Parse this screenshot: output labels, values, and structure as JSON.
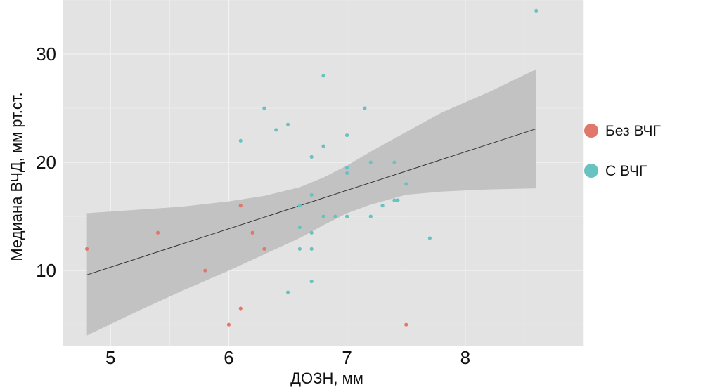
{
  "chart_data": {
    "type": "scatter",
    "xlabel": "ДОЗН, мм",
    "ylabel": "Медиана ВЧД, мм рт.ст.",
    "xlim": [
      4.6,
      9.0
    ],
    "ylim": [
      3.0,
      35.0
    ],
    "x_ticks": [
      5,
      6,
      7,
      8
    ],
    "y_ticks": [
      10,
      20,
      30
    ],
    "grid": true,
    "legend_position": "right",
    "colors": {
      "panel": "#e3e3e3",
      "grid": "#f2f2f2",
      "ribbon": "#c2c2c2",
      "line": "#333333",
      "series_1": "#e0776b",
      "series_2": "#69c2c2"
    },
    "series": [
      {
        "name": "Без ВЧГ",
        "color": "#e0776b",
        "points": [
          {
            "x": 4.8,
            "y": 12
          },
          {
            "x": 5.4,
            "y": 13.5
          },
          {
            "x": 5.8,
            "y": 10
          },
          {
            "x": 6.0,
            "y": 5
          },
          {
            "x": 6.1,
            "y": 16
          },
          {
            "x": 6.1,
            "y": 6.5
          },
          {
            "x": 6.2,
            "y": 13.5
          },
          {
            "x": 6.3,
            "y": 12
          },
          {
            "x": 7.5,
            "y": 5
          }
        ]
      },
      {
        "name": "С ВЧГ",
        "color": "#69c2c2",
        "points": [
          {
            "x": 6.1,
            "y": 22
          },
          {
            "x": 6.3,
            "y": 25
          },
          {
            "x": 6.4,
            "y": 23
          },
          {
            "x": 6.5,
            "y": 23.5
          },
          {
            "x": 6.5,
            "y": 8
          },
          {
            "x": 6.6,
            "y": 16
          },
          {
            "x": 6.6,
            "y": 14
          },
          {
            "x": 6.6,
            "y": 12
          },
          {
            "x": 6.7,
            "y": 20.5
          },
          {
            "x": 6.7,
            "y": 17
          },
          {
            "x": 6.7,
            "y": 13.5
          },
          {
            "x": 6.7,
            "y": 12
          },
          {
            "x": 6.7,
            "y": 9
          },
          {
            "x": 6.8,
            "y": 28
          },
          {
            "x": 6.8,
            "y": 21.5
          },
          {
            "x": 6.8,
            "y": 15
          },
          {
            "x": 6.9,
            "y": 15
          },
          {
            "x": 7.0,
            "y": 22.5
          },
          {
            "x": 7.0,
            "y": 19.5
          },
          {
            "x": 7.0,
            "y": 19
          },
          {
            "x": 7.0,
            "y": 15
          },
          {
            "x": 7.15,
            "y": 25
          },
          {
            "x": 7.2,
            "y": 20
          },
          {
            "x": 7.2,
            "y": 15
          },
          {
            "x": 7.3,
            "y": 16
          },
          {
            "x": 7.4,
            "y": 20
          },
          {
            "x": 7.4,
            "y": 16.5
          },
          {
            "x": 7.43,
            "y": 16.5
          },
          {
            "x": 7.5,
            "y": 18
          },
          {
            "x": 7.7,
            "y": 13
          },
          {
            "x": 8.6,
            "y": 34
          }
        ]
      }
    ],
    "regression": {
      "x": [
        4.8,
        8.6
      ],
      "y": [
        9.6,
        23.1
      ]
    },
    "confidence_band": [
      {
        "x": 4.8,
        "lower": 4.0,
        "upper": 15.3
      },
      {
        "x": 5.2,
        "lower": 6.1,
        "upper": 15.6
      },
      {
        "x": 5.6,
        "lower": 8.1,
        "upper": 15.9
      },
      {
        "x": 6.0,
        "lower": 10.0,
        "upper": 16.4
      },
      {
        "x": 6.3,
        "lower": 11.5,
        "upper": 16.9
      },
      {
        "x": 6.6,
        "lower": 13.0,
        "upper": 17.7
      },
      {
        "x": 6.8,
        "lower": 14.2,
        "upper": 18.6
      },
      {
        "x": 7.0,
        "lower": 15.3,
        "upper": 19.7
      },
      {
        "x": 7.2,
        "lower": 16.1,
        "upper": 21.0
      },
      {
        "x": 7.5,
        "lower": 17.0,
        "upper": 22.8
      },
      {
        "x": 7.8,
        "lower": 17.3,
        "upper": 24.6
      },
      {
        "x": 8.2,
        "lower": 17.5,
        "upper": 26.5
      },
      {
        "x": 8.6,
        "lower": 17.6,
        "upper": 28.6
      }
    ]
  }
}
